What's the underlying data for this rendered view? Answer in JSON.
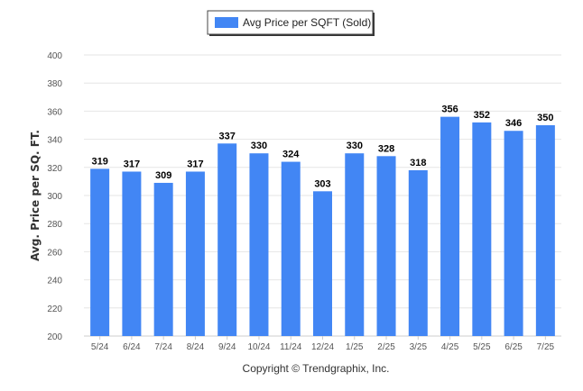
{
  "chart_data": {
    "type": "bar",
    "categories": [
      "5/24",
      "6/24",
      "7/24",
      "8/24",
      "9/24",
      "10/24",
      "11/24",
      "12/24",
      "1/25",
      "2/25",
      "3/25",
      "4/25",
      "5/25",
      "6/25",
      "7/25"
    ],
    "series": [
      {
        "name": "Avg Price per SQFT (Sold)",
        "values": [
          319,
          317,
          309,
          317,
          337,
          330,
          324,
          303,
          330,
          328,
          318,
          356,
          352,
          346,
          350
        ]
      }
    ],
    "ylabel": "Avg. Price per SQ. FT.",
    "xlabel": "",
    "ylim": [
      200,
      400
    ],
    "yticks": [
      200,
      220,
      240,
      260,
      280,
      300,
      320,
      340,
      360,
      380,
      400
    ],
    "grid": true,
    "legend_position": "top-center",
    "bar_color": "#4286f4",
    "data_labels": true
  },
  "footer": {
    "copyright": "Copyright © Trendgraphix, Inc."
  }
}
